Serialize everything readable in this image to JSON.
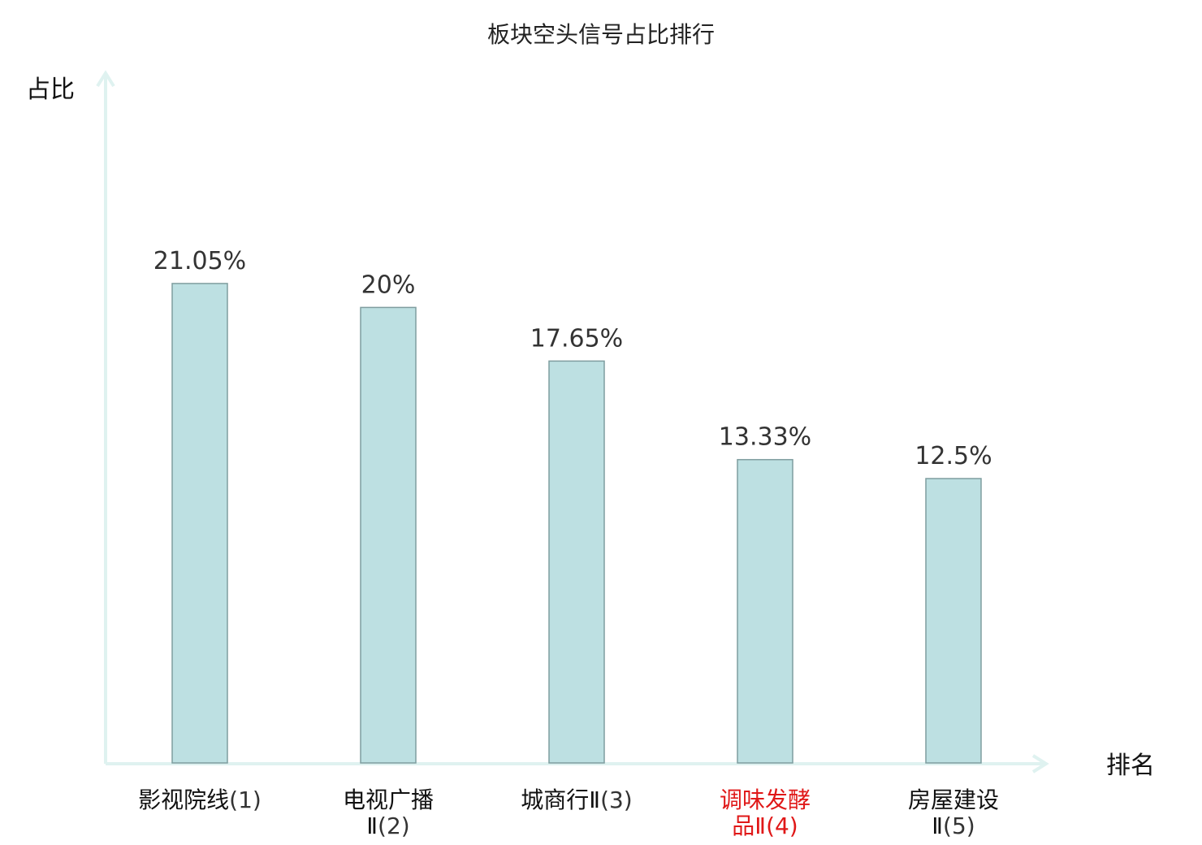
{
  "chart_data": {
    "type": "bar",
    "title": "板块空头信号占比排行",
    "ylabel": "占比",
    "xlabel": "排名",
    "ylim": [
      0,
      25
    ],
    "categories": [
      {
        "line1": "影视院线",
        "suffix": "(1)",
        "line2": "",
        "suffix2": "",
        "highlight": false
      },
      {
        "line1": "电视广播",
        "suffix": "",
        "line2": "Ⅱ",
        "suffix2": "(2)",
        "highlight": false
      },
      {
        "line1": "城商行Ⅱ",
        "suffix": "(3)",
        "line2": "",
        "suffix2": "",
        "highlight": false
      },
      {
        "line1": "调味发酵",
        "suffix": "",
        "line2": "品Ⅱ",
        "suffix2": "(4)",
        "highlight": true
      },
      {
        "line1": "房屋建设",
        "suffix": "",
        "line2": "Ⅱ",
        "suffix2": "(5)",
        "highlight": false
      }
    ],
    "values": [
      21.05,
      20,
      17.65,
      13.33,
      12.5
    ],
    "value_labels": [
      "21.05%",
      "20%",
      "17.65%",
      "13.33%",
      "12.5%"
    ],
    "grid": false,
    "colors": {
      "bar_fill": "#bde0e2",
      "bar_stroke": "#7f9d9f",
      "axis": "#dff2f0",
      "highlight_text": "#e01818",
      "normal_text": "#111111",
      "suffix_text": "#333333"
    }
  }
}
